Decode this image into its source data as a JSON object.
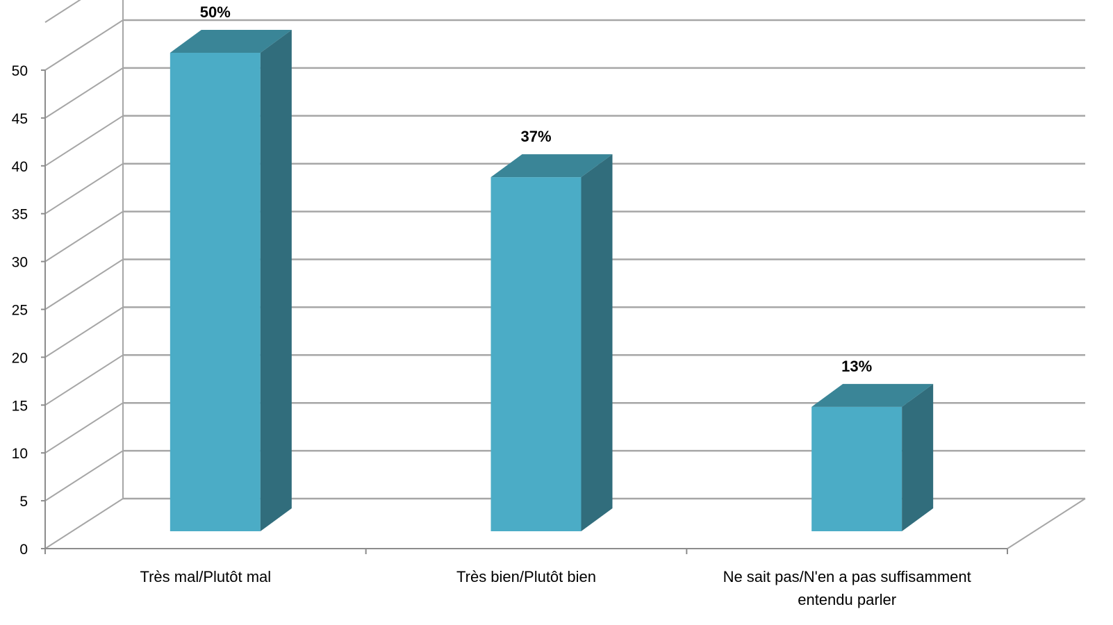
{
  "chart_data": {
    "type": "bar",
    "three_d": true,
    "categories": [
      [
        "Très mal/Plutôt mal"
      ],
      [
        "Très bien/Plutôt bien"
      ],
      [
        "Ne sait pas/N'en a pas suffisamment",
        "entendu parler"
      ]
    ],
    "values": [
      50,
      37,
      13
    ],
    "data_labels": [
      "50%",
      "37%",
      "13%"
    ],
    "title": "",
    "xlabel": "",
    "ylabel": "",
    "ylim": [
      0,
      55
    ],
    "yticks": [
      0,
      5,
      10,
      15,
      20,
      25,
      30,
      35,
      40,
      45,
      50
    ],
    "grid": true,
    "legend": "none",
    "colors": {
      "bar_front": "#4bacc6",
      "bar_top": "#3a8597",
      "bar_side": "#316d7c",
      "grid": "#a6a6a6",
      "axis": "#8c8c8c"
    }
  }
}
